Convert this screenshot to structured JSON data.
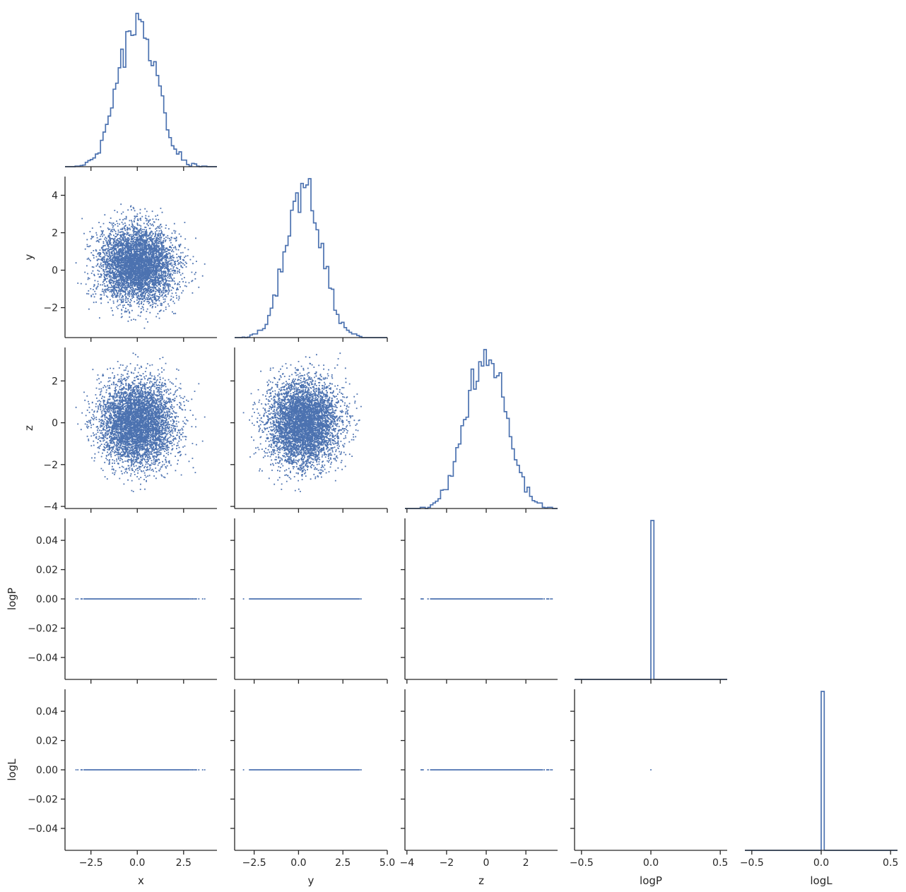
{
  "chart_data": {
    "type": "pairplot-corner",
    "variables": [
      "x",
      "y",
      "z",
      "logP",
      "logL"
    ],
    "colors": {
      "series": "#4c72b0",
      "axis": "#262626",
      "text": "#262626"
    },
    "marginals": {
      "x": {
        "kind": "step-histogram",
        "distribution": "normal",
        "mean": 0.0,
        "std": 1.0
      },
      "y": {
        "kind": "step-histogram",
        "distribution": "normal",
        "mean": 0.3,
        "std": 1.0
      },
      "z": {
        "kind": "step-histogram",
        "distribution": "normal",
        "mean": 0.0,
        "std": 1.0
      },
      "logP": {
        "kind": "step-histogram",
        "all_values": 0.0
      },
      "logL": {
        "kind": "step-histogram",
        "all_values": 0.0
      }
    },
    "axes": {
      "x": {
        "label": "x",
        "range": [
          -3.9,
          4.3
        ],
        "ticks": [
          -2.5,
          0,
          2.5
        ],
        "tick_labels": [
          "−2.5",
          "0.0",
          "2.5"
        ]
      },
      "y": {
        "label": "y",
        "range": [
          -3.6,
          5.0
        ],
        "ticks": [
          -2.5,
          0,
          2.5,
          5.0
        ],
        "tick_labels": [
          "−2.5",
          "0.0",
          "2.5",
          "5.0"
        ],
        "row_ticks": [
          -2,
          0,
          2,
          4
        ],
        "row_tick_labels": [
          "−2",
          "0",
          "2",
          "4"
        ]
      },
      "z": {
        "label": "z",
        "range": [
          -4.1,
          3.6
        ],
        "ticks": [
          -4,
          -2,
          0,
          2
        ],
        "tick_labels": [
          "−4",
          "−2",
          "0",
          "2"
        ]
      },
      "logP": {
        "label": "logP",
        "range": [
          -0.055,
          0.055
        ],
        "ticks": [
          -0.5,
          0,
          0.5
        ],
        "tick_labels": [
          "−0.5",
          "0.0",
          "0.5"
        ],
        "row_ticks": [
          -0.04,
          -0.02,
          0,
          0.02,
          0.04
        ],
        "row_tick_labels": [
          "−0.04",
          "−0.02",
          "0.00",
          "0.02",
          "0.04"
        ]
      },
      "logL": {
        "label": "logL",
        "range": [
          -0.055,
          0.055
        ],
        "ticks": [
          -0.5,
          0,
          0.5
        ],
        "tick_labels": [
          "−0.5",
          "0.0",
          "0.5"
        ],
        "row_ticks": [
          -0.04,
          -0.02,
          0,
          0.02,
          0.04
        ],
        "row_tick_labels": [
          "−0.04",
          "−0.02",
          "0.00",
          "0.02",
          "0.04"
        ]
      }
    },
    "scatter": {
      "sample_count": 5000,
      "x_y_correlation": 0.0
    }
  }
}
